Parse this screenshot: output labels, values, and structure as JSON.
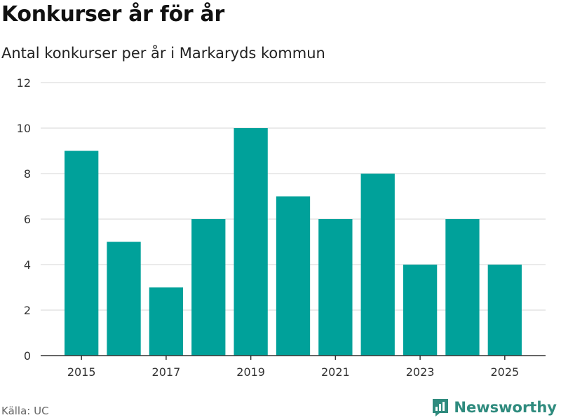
{
  "header": {
    "title": "Konkurser år för år",
    "subtitle": "Antal konkurser per år i Markaryds kommun"
  },
  "footer": {
    "source": "Källa: UC",
    "brand": "Newsworthy"
  },
  "colors": {
    "bar": "#00a19a",
    "grid": "#dddddd",
    "axis": "#333333",
    "brand": "#2f8b7e"
  },
  "chart_data": {
    "type": "bar",
    "categories": [
      "2015",
      "2016",
      "2017",
      "2018",
      "2019",
      "2020",
      "2021",
      "2022",
      "2023",
      "2024",
      "2025"
    ],
    "series": [
      {
        "values": [
          9,
          5,
          3,
          6,
          10,
          7,
          6,
          8,
          4,
          6,
          4
        ]
      }
    ],
    "xtick_labels": [
      "2015",
      "",
      "2017",
      "",
      "2019",
      "",
      "2021",
      "",
      "2023",
      "",
      "2025"
    ],
    "yticks": [
      0,
      2,
      4,
      6,
      8,
      10,
      12
    ],
    "ylim": [
      0,
      12
    ],
    "xlabel": "",
    "ylabel": "",
    "grid": true,
    "legend": "none"
  }
}
